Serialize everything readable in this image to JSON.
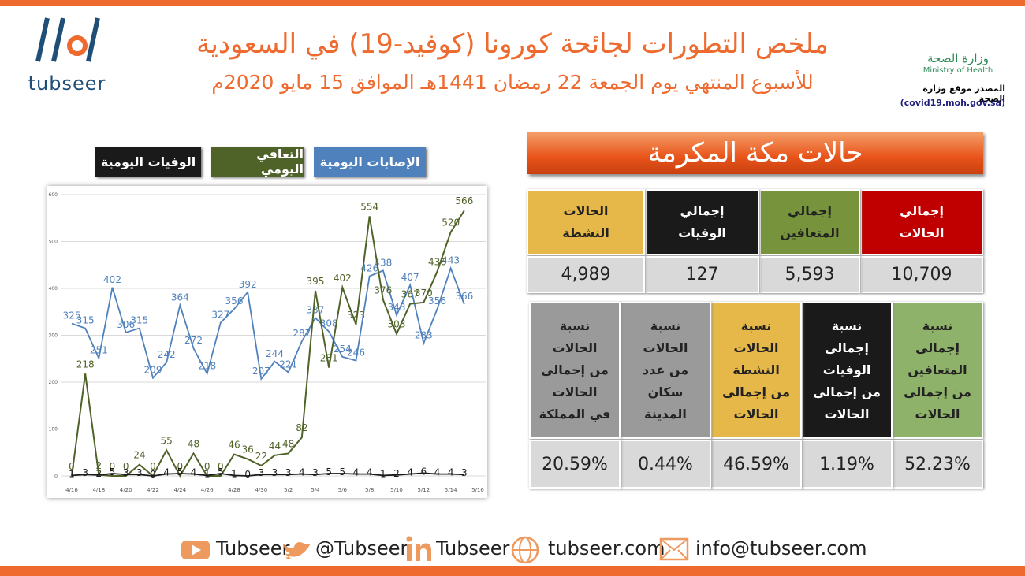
{
  "header": {
    "title": "ملخص التطورات لجائحة كورونا (كوفيد-19) في السعودية",
    "subtitle": "للأسبوع المنتهي يوم الجمعة 22 رمضان 1441هـ الموافق 15 مايو 2020م",
    "logo": "tubseer",
    "ministry_ar": "وزارة الصحة",
    "ministry_en": "Ministry of Health",
    "source": "المصدر موقع وزارة الصحة",
    "source_url": "(covid19.moh.gov.sa)"
  },
  "region_title": "حالات مكة المكرمة",
  "chart_data": {
    "type": "line",
    "categories": [
      "4/16",
      null,
      "4/18",
      null,
      "4/20",
      null,
      "4/22",
      null,
      "4/24",
      null,
      "4/26",
      null,
      "4/28",
      null,
      "4/30",
      null,
      "5/2",
      null,
      "5/4",
      null,
      "5/6",
      null,
      "5/8",
      null,
      "5/10",
      null,
      "5/12",
      null,
      "5/14",
      null,
      "5/16"
    ],
    "series": [
      {
        "name": "الإصابات اليومية",
        "color": "#4f81bd",
        "values": [
          325,
          315,
          251,
          402,
          306,
          315,
          209,
          242,
          364,
          272,
          218,
          327,
          356,
          392,
          207,
          244,
          221,
          287,
          337,
          308,
          254,
          246,
          426,
          438,
          343,
          407,
          283,
          356,
          443,
          366,
          null
        ]
      },
      {
        "name": "التعافي اليومي",
        "color": "#4f6228",
        "values": [
          0,
          218,
          2,
          0,
          0,
          24,
          0,
          55,
          0,
          48,
          0,
          0,
          46,
          36,
          22,
          44,
          48,
          82,
          395,
          231,
          402,
          323,
          554,
          376,
          303,
          367,
          370,
          436,
          520,
          566,
          null
        ]
      },
      {
        "name": "الوفيات اليومية",
        "color": "#1a1a1a",
        "values": [
          1,
          3,
          2,
          5,
          3,
          3,
          0,
          4,
          5,
          4,
          1,
          5,
          1,
          0,
          3,
          3,
          3,
          4,
          3,
          5,
          5,
          4,
          4,
          1,
          2,
          4,
          6,
          4,
          4,
          3,
          null
        ]
      }
    ],
    "ylim": [
      0,
      600
    ],
    "yticks": [
      0,
      100,
      200,
      300,
      400,
      500,
      600
    ],
    "grid": true
  },
  "totals": [
    {
      "label": "إجمالي\nالحالات",
      "value": "10,709",
      "color": "#c00000"
    },
    {
      "label": "إجمالي\nالمتعافين",
      "value": "5,593",
      "color": "#77933c"
    },
    {
      "label": "إجمالي\nالوفيات",
      "value": "127",
      "color": "#1a1a1a"
    },
    {
      "label": "الحالات\nالنشطة",
      "value": "4,989",
      "color": "#e6b84a"
    }
  ],
  "ratios": [
    {
      "label": "نسبة\nإجمالي\nالمتعافين\nمن إجمالي\nالحالات",
      "value": "52.23%",
      "color": "#8fb26b"
    },
    {
      "label": "نسبة\nإجمالي الوفيات\nمن إجمالي\nالحالات",
      "value": "1.19%",
      "color": "#1a1a1a"
    },
    {
      "label": "نسبة\nالحالات\nالنشطة\nمن إجمالي\nالحالات",
      "value": "46.59%",
      "color": "#e6b84a"
    },
    {
      "label": "نسبة\nالحالات\nمن عدد\nسكان\nالمدينة",
      "value": "0.44%",
      "color": "#9a9a9a"
    },
    {
      "label": "نسبة\nالحالات\nمن إجمالي\nالحالات\nفي المملكة",
      "value": "20.59%",
      "color": "#9a9a9a"
    }
  ],
  "footer": {
    "youtube": "Tubseer",
    "twitter": "@Tubseer",
    "linkedin": "Tubseer",
    "web": "tubseer.com",
    "email": "info@tubseer.com"
  }
}
